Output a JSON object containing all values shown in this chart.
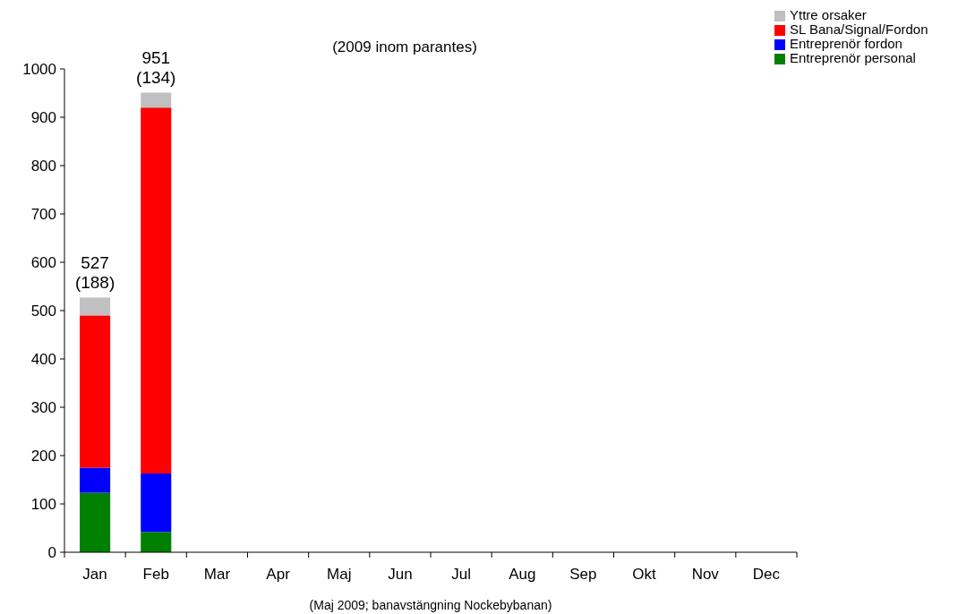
{
  "chart_data": {
    "type": "bar",
    "stacked": true,
    "title": "(2009 inom parantes)",
    "xlabel": "(Maj 2009; banavstängning Nockebybanan)",
    "categories": [
      "Jan",
      "Feb",
      "Mar",
      "Apr",
      "Maj",
      "Jun",
      "Jul",
      "Aug",
      "Sep",
      "Okt",
      "Nov",
      "Dec"
    ],
    "series": [
      {
        "name": "Entreprenör personal",
        "color": "#008000",
        "values": [
          123,
          42,
          null,
          null,
          null,
          null,
          null,
          null,
          null,
          null,
          null,
          null
        ]
      },
      {
        "name": "Entreprenör fordon",
        "color": "#0000ff",
        "values": [
          52,
          121,
          null,
          null,
          null,
          null,
          null,
          null,
          null,
          null,
          null,
          null
        ]
      },
      {
        "name": "SL Bana/Signal/Fordon",
        "color": "#ff0000",
        "values": [
          315,
          757,
          null,
          null,
          null,
          null,
          null,
          null,
          null,
          null,
          null,
          null
        ]
      },
      {
        "name": "Yttre orsaker",
        "color": "#c0c0c0",
        "values": [
          37,
          31,
          null,
          null,
          null,
          null,
          null,
          null,
          null,
          null,
          null,
          null
        ]
      }
    ],
    "totals": [
      "527\n(188)",
      "951\n(134)",
      null,
      null,
      null,
      null,
      null,
      null,
      null,
      null,
      null,
      null
    ],
    "ylim": [
      0,
      1000
    ],
    "yticks": [
      0,
      100,
      200,
      300,
      400,
      500,
      600,
      700,
      800,
      900,
      1000
    ],
    "grid": false,
    "legend": "top right"
  }
}
